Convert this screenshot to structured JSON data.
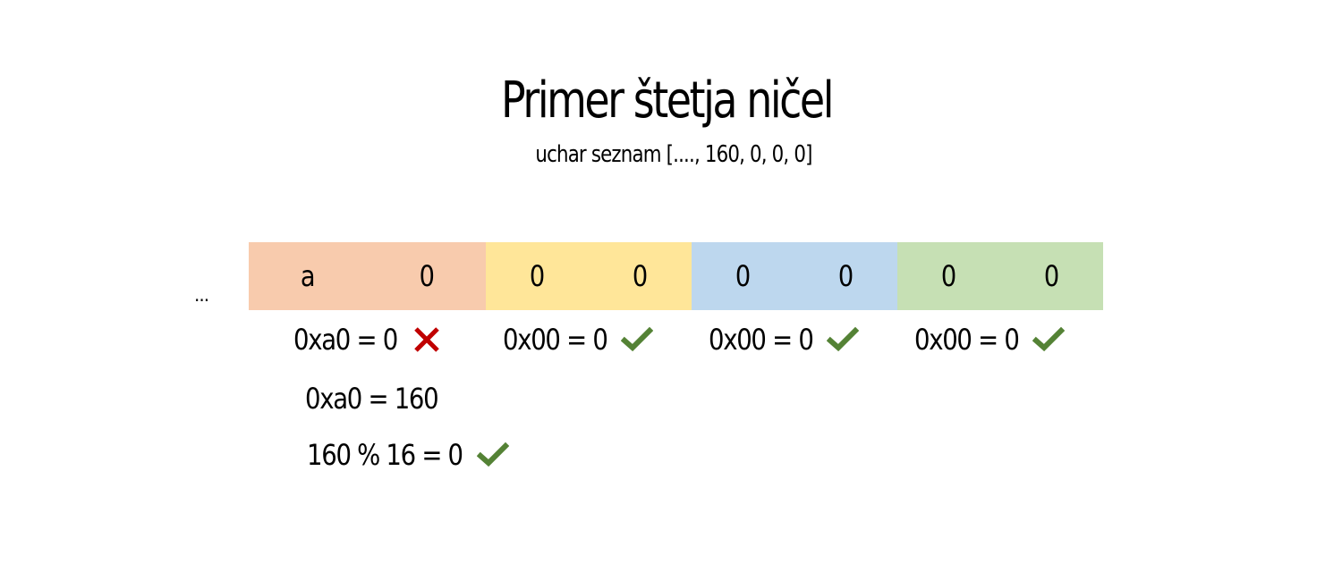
{
  "title": "Primer štetja ničel",
  "subtitle": "uchar seznam [...., 160, 0, 0, 0]",
  "ellipsis": "...",
  "bytes": [
    {
      "color": "#F8CBAD",
      "nibbles": [
        "a",
        "0"
      ],
      "check_text": "0xa0 = 0",
      "result": "fail"
    },
    {
      "color": "#FFE699",
      "nibbles": [
        "0",
        "0"
      ],
      "check_text": "0x00 = 0",
      "result": "pass"
    },
    {
      "color": "#BDD7EE",
      "nibbles": [
        "0",
        "0"
      ],
      "check_text": "0x00 = 0",
      "result": "pass"
    },
    {
      "color": "#C6E0B4",
      "nibbles": [
        "0",
        "0"
      ],
      "check_text": "0x00 = 0",
      "result": "pass"
    }
  ],
  "conversion_line": "0xa0 = 160",
  "modulo_line": {
    "text": "160 % 16 = 0",
    "result": "pass"
  },
  "colors": {
    "pass": "#548235",
    "fail": "#C00000"
  },
  "icons": {
    "pass": "check-icon",
    "fail": "cross-icon"
  }
}
